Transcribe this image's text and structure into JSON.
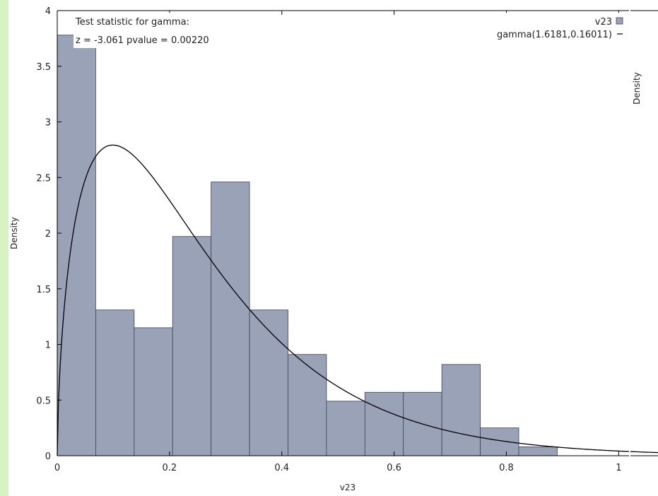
{
  "colors": {
    "frame_left_strip": "#d9f2c4",
    "bar_fill": "#9aa2b8",
    "bar_stroke": "#3d4258",
    "curve": "#000000",
    "axis": "#000000"
  },
  "chart_data": {
    "type": "bar",
    "xlabel": "v23",
    "ylabel": "Density",
    "xlim": [
      0,
      1.07
    ],
    "ylim": [
      0,
      4
    ],
    "x_ticks": [
      0,
      0.2,
      0.4,
      0.6,
      0.8,
      1
    ],
    "x_tick_labels": [
      "0",
      "0.2",
      "0.4",
      "0.6",
      "0.8",
      "1"
    ],
    "y_ticks": [
      0,
      0.5,
      1,
      1.5,
      2,
      2.5,
      3,
      3.5,
      4
    ],
    "y_tick_labels": [
      "0",
      "0.5",
      "1",
      "1.5",
      "2",
      "2.5",
      "3",
      "3.5",
      "4"
    ],
    "bin_width": 0.0685,
    "bins": [
      {
        "x0": 0.0,
        "x1": 0.0685,
        "density": 3.78
      },
      {
        "x0": 0.0685,
        "x1": 0.137,
        "density": 1.31
      },
      {
        "x0": 0.137,
        "x1": 0.2055,
        "density": 1.15
      },
      {
        "x0": 0.2055,
        "x1": 0.274,
        "density": 1.97
      },
      {
        "x0": 0.274,
        "x1": 0.3425,
        "density": 2.46
      },
      {
        "x0": 0.3425,
        "x1": 0.411,
        "density": 1.31
      },
      {
        "x0": 0.411,
        "x1": 0.4795,
        "density": 0.91
      },
      {
        "x0": 0.4795,
        "x1": 0.548,
        "density": 0.49
      },
      {
        "x0": 0.548,
        "x1": 0.6165,
        "density": 0.57
      },
      {
        "x0": 0.6165,
        "x1": 0.685,
        "density": 0.57
      },
      {
        "x0": 0.685,
        "x1": 0.7535,
        "density": 0.82
      },
      {
        "x0": 0.7535,
        "x1": 0.822,
        "density": 0.25
      },
      {
        "x0": 0.822,
        "x1": 0.8905,
        "density": 0.08
      }
    ],
    "series": [
      {
        "name": "v23",
        "kind": "histogram"
      },
      {
        "name": "gamma(1.6181,0.16011)",
        "kind": "line",
        "dist": "gamma",
        "shape": 1.6181,
        "scale": 0.16011
      }
    ],
    "annotations": [
      "Test statistic for gamma:",
      "z = -3.061 pvalue = 0.00220"
    ],
    "legend_position": "top-right",
    "grid": false
  },
  "side_panel": {
    "ylabel": "Density"
  }
}
